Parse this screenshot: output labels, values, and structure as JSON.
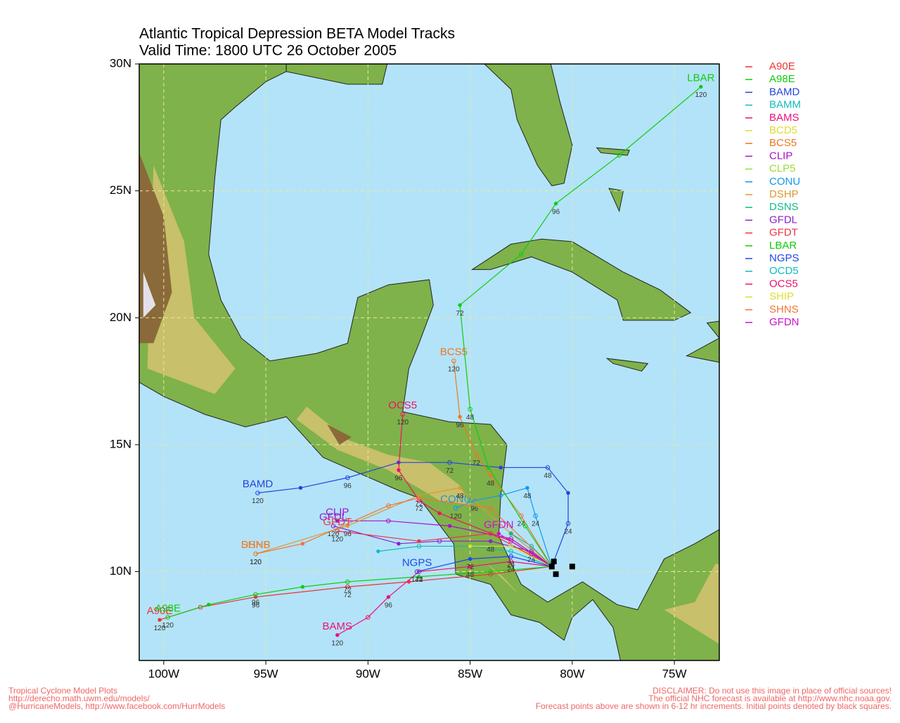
{
  "chart_data": {
    "type": "track",
    "title": "Atlantic Tropical Depression BETA Model Tracks",
    "subtitle": "Valid Time: 1800 UTC 26 October 2005",
    "xlim": [
      -101.2,
      -72.8
    ],
    "ylim": [
      6.5,
      30
    ],
    "xticks": [
      {
        "value": -100,
        "label": "100W"
      },
      {
        "value": -95,
        "label": "95W"
      },
      {
        "value": -90,
        "label": "90W"
      },
      {
        "value": -85,
        "label": "85W"
      },
      {
        "value": -80,
        "label": "80W"
      },
      {
        "value": -75,
        "label": "75W"
      }
    ],
    "yticks": [
      {
        "value": 10,
        "label": "10N"
      },
      {
        "value": 15,
        "label": "15N"
      },
      {
        "value": 20,
        "label": "20N"
      },
      {
        "value": 25,
        "label": "25N"
      },
      {
        "value": 30,
        "label": "30N"
      }
    ],
    "grid": true,
    "grid_color": "#e8e8a0",
    "initial_points": {
      "x": [
        -80.9,
        -81.0,
        -80.8,
        -80.0
      ],
      "values": [
        10.4,
        10.2,
        9.9,
        10.2
      ]
    },
    "series": [
      {
        "name": "A90E",
        "color": "#ee3333",
        "x": [
          -81,
          -84,
          -88,
          -91,
          -95.5,
          -98.2,
          -100.2
        ],
        "values": [
          10.2,
          9.9,
          9.6,
          9.4,
          9.0,
          8.6,
          8.1
        ],
        "labels": [
          null,
          null,
          null,
          72,
          96,
          null,
          120
        ],
        "tag": true
      },
      {
        "name": "A98E",
        "color": "#11cc11",
        "x": [
          -81,
          -84,
          -87.5,
          -91,
          -93.2,
          -95.5,
          -97.8,
          -99.8
        ],
        "values": [
          10.2,
          10.0,
          9.8,
          9.6,
          9.4,
          9.1,
          8.7,
          8.2
        ],
        "labels": [
          null,
          null,
          null,
          72,
          null,
          96,
          null,
          120
        ],
        "tag": true
      },
      {
        "name": "BAMD",
        "color": "#2244dd",
        "x": [
          -81,
          -80.2,
          -80.2,
          -81.2,
          -83.5,
          -86,
          -88.5,
          -91,
          -93.3,
          -95.4
        ],
        "values": [
          10.2,
          11.9,
          13.1,
          14.1,
          14.1,
          14.3,
          14.3,
          13.7,
          13.3,
          13.1
        ],
        "labels": [
          null,
          24,
          null,
          48,
          null,
          72,
          null,
          96,
          null,
          120
        ],
        "tag": true
      },
      {
        "name": "BAMM",
        "color": "#11bbbb",
        "x": [
          -81,
          -83,
          -85,
          -87.5,
          -89.5
        ],
        "values": [
          10.2,
          10.8,
          11.0,
          11.0,
          10.8
        ],
        "labels": [
          null,
          null,
          null,
          null,
          null
        ],
        "tag": false
      },
      {
        "name": "BAMS",
        "color": "#ee1177",
        "x": [
          -81,
          -83,
          -85,
          -87.5,
          -89,
          -90,
          -91.5
        ],
        "values": [
          10.2,
          10.4,
          10.2,
          10.0,
          9.0,
          8.2,
          7.5
        ],
        "labels": [
          null,
          24,
          48,
          72,
          96,
          null,
          120
        ],
        "tag": true
      },
      {
        "name": "BCD5",
        "color": "#dddd33",
        "x": [
          -81,
          -82.5
        ],
        "values": [
          10.2,
          10.9
        ],
        "labels": [
          null,
          null
        ],
        "tag": false
      },
      {
        "name": "BCS5",
        "color": "#ee7722",
        "x": [
          -81,
          -82.5,
          -84,
          -84.7,
          -85.5,
          -85.8
        ],
        "values": [
          10.2,
          12.2,
          13.8,
          14.6,
          16.1,
          18.3
        ],
        "labels": [
          null,
          24,
          48,
          72,
          96,
          120
        ],
        "tag": true
      },
      {
        "name": "CLIP",
        "color": "#aa11cc",
        "x": [
          -81,
          -83,
          -86,
          -89,
          -91.5
        ],
        "values": [
          10.2,
          11.3,
          11.8,
          12.0,
          12.0
        ],
        "labels": [
          null,
          null,
          null,
          null,
          null
        ],
        "tag": true
      },
      {
        "name": "CLP5",
        "color": "#99dd33",
        "x": [
          -81,
          -82
        ],
        "values": [
          10.2,
          10.8
        ],
        "labels": [
          null,
          null
        ],
        "tag": false
      },
      {
        "name": "CONU",
        "color": "#1199ee",
        "x": [
          -81,
          -81.8,
          -82.2,
          -83.5,
          -84.8,
          -85.7
        ],
        "values": [
          10.2,
          12.2,
          13.3,
          13.0,
          12.8,
          12.5
        ],
        "labels": [
          null,
          24,
          48,
          null,
          96,
          120
        ],
        "tag": true
      },
      {
        "name": "DSHP",
        "color": "#dd9933",
        "x": [
          -81,
          -83,
          -85.5,
          -87.5,
          -91,
          -95.5
        ],
        "values": [
          10.2,
          11.5,
          13.3,
          13.0,
          11.8,
          10.7
        ],
        "labels": [
          null,
          null,
          48,
          72,
          96,
          120
        ],
        "tag": true
      },
      {
        "name": "DSNS",
        "color": "#11bb88",
        "x": [
          -81,
          -82,
          -83
        ],
        "values": [
          10.2,
          11.0,
          11.5
        ],
        "labels": [
          null,
          null,
          null
        ],
        "tag": false
      },
      {
        "name": "GFDL",
        "color": "#8822cc",
        "x": [
          -81,
          -82,
          -84,
          -86.5,
          -88.5,
          -91.7
        ],
        "values": [
          10.2,
          10.8,
          11.2,
          11.2,
          11.1,
          11.8
        ],
        "labels": [
          null,
          24,
          48,
          null,
          null,
          120
        ],
        "tag": true
      },
      {
        "name": "GFDT",
        "color": "#ee3344",
        "x": [
          -81,
          -84,
          -87.5,
          -91.5
        ],
        "values": [
          10.2,
          11.5,
          11.2,
          11.6
        ],
        "labels": [
          null,
          null,
          null,
          120
        ],
        "tag": true
      },
      {
        "name": "LBAR",
        "color": "#11cc11",
        "x": [
          -81,
          -82.3,
          -84.1,
          -85,
          -85.5,
          -82.5,
          -80.8,
          -77.7,
          -73.7
        ],
        "values": [
          10.2,
          11.8,
          14.1,
          16.4,
          20.5,
          22.5,
          24.5,
          26.4,
          29.1
        ],
        "labels": [
          null,
          null,
          null,
          48,
          72,
          null,
          96,
          null,
          120
        ],
        "tag": true
      },
      {
        "name": "NGPS",
        "color": "#2244ee",
        "x": [
          -81,
          -83,
          -85,
          -87.6
        ],
        "values": [
          10.2,
          10.6,
          10.5,
          10.0
        ],
        "labels": [
          null,
          24,
          72,
          144
        ],
        "tag": true
      },
      {
        "name": "OCD5",
        "color": "#11bbbb",
        "x": [
          -81,
          -82
        ],
        "values": [
          10.2,
          11.0
        ],
        "labels": [
          null,
          null
        ],
        "tag": false
      },
      {
        "name": "OCS5",
        "color": "#ee1166",
        "x": [
          -81,
          -83,
          -86.5,
          -87.5,
          -88.5,
          -88.3
        ],
        "values": [
          10.2,
          11.2,
          12.3,
          12.8,
          14.0,
          16.2
        ],
        "labels": [
          null,
          null,
          null,
          72,
          96,
          120
        ],
        "tag": true
      },
      {
        "name": "SHIP",
        "color": "#dddd33",
        "x": [
          -81,
          -83,
          -85
        ],
        "values": [
          10.2,
          11.0,
          11.0
        ],
        "labels": [
          null,
          null,
          null
        ],
        "tag": false
      },
      {
        "name": "SHNS",
        "color": "#ee7733",
        "x": [
          -81,
          -84,
          -87.5,
          -89,
          -93.2,
          -95.5
        ],
        "values": [
          10.2,
          12.5,
          12.9,
          12.6,
          11.1,
          10.7
        ],
        "labels": [
          null,
          null,
          null,
          null,
          null,
          120
        ],
        "tag": true
      },
      {
        "name": "GFDN",
        "color": "#cc11cc",
        "x": [
          -81,
          -82,
          -83.6
        ],
        "values": [
          10.2,
          10.7,
          11.5
        ],
        "labels": [
          null,
          null,
          null
        ],
        "tag": true
      }
    ],
    "footer_left": [
      "Tropical Cyclone Model Plots",
      "http://derecho.math.uwm.edu/models/",
      "@HurricaneModels, http://www.facebook.com/HurrModels"
    ],
    "footer_right": [
      "DISCLAIMER: Do not use this image in place of official sources!",
      "The official NHC forecast is available at http://www.nhc.noaa.gov.",
      "Forecast points above are shown in 6-12 hr increments. Initial points denoted by black squares."
    ],
    "footer_color": "#ee6666"
  }
}
